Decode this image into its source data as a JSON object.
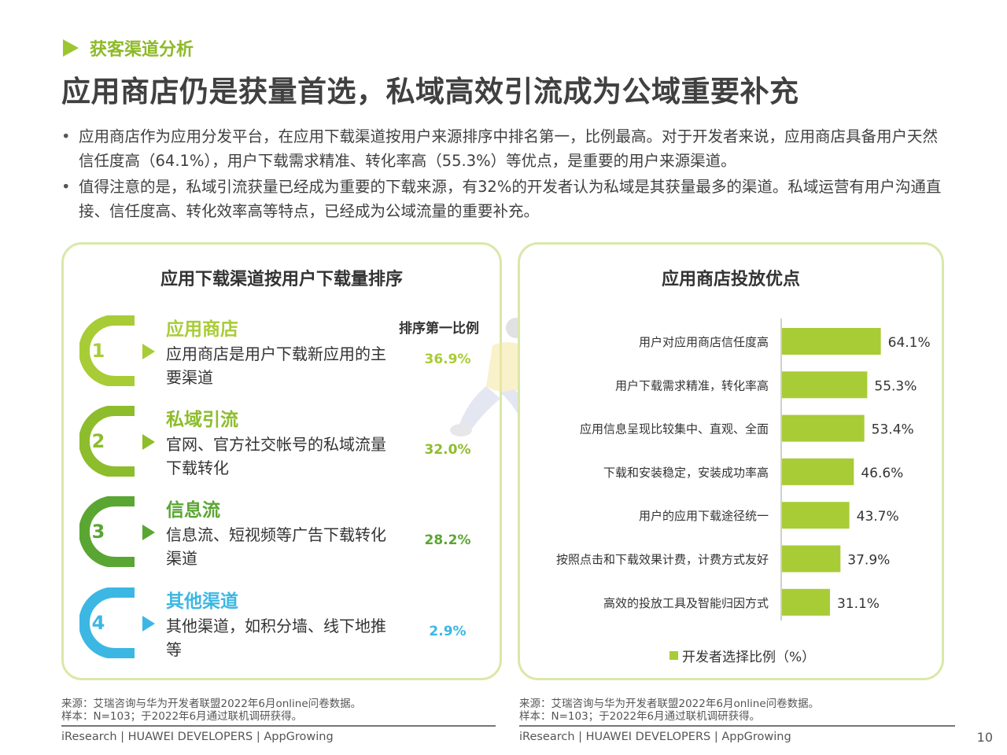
{
  "section_tag": "获客渠道分析",
  "title": "应用商店仍是获量首选，私域高效引流成为公域重要补充",
  "bullets": [
    "应用商店作为应用分发平台，在应用下载渠道按用户来源排序中排名第一，比例最高。对于开发者来说，应用商店具备用户天然信任度高（64.1%），用户下载需求精准、转化率高（55.3%）等优点，是重要的用户来源渠道。",
    "值得注意的是，私域引流获量已经成为重要的下载来源，有32%的开发者认为私域是其获量最多的渠道。私域运营有用户沟通直接、信任度高、转化效率高等特点，已经成为公域流量的重要补充。"
  ],
  "left_panel": {
    "title": "应用下载渠道按用户下载量排序",
    "column_header": "排序第一比例",
    "items": [
      {
        "num": "1",
        "name": "应用商店",
        "desc": "应用商店是用户下载新应用的主要渠道",
        "pct": "36.9%",
        "value": 36.9,
        "color": "#a8cc36"
      },
      {
        "num": "2",
        "name": "私域引流",
        "desc": "官网、官方社交帐号的私域流量下载转化",
        "pct": "32.0%",
        "value": 32.0,
        "color": "#8dbd2c"
      },
      {
        "num": "3",
        "name": "信息流",
        "desc": "信息流、短视频等广告下载转化渠道",
        "pct": "28.2%",
        "value": 28.2,
        "color": "#5aa632"
      },
      {
        "num": "4",
        "name": "其他渠道",
        "desc": "其他渠道，如积分墙、线下地推等",
        "pct": "2.9%",
        "value": 2.9,
        "color": "#3cb7e4"
      }
    ]
  },
  "right_panel": {
    "title": "应用商店投放优点"
  },
  "chart_data": {
    "type": "bar",
    "orientation": "horizontal",
    "categories": [
      "用户对应用商店信任度高",
      "用户下载需求精准，转化率高",
      "应用信息呈现比较集中、直观、全面",
      "下载和安装稳定，安装成功率高",
      "用户的应用下载途径统一",
      "按照点击和下载效果计费，计费方式友好",
      "高效的投放工具及智能归因方式"
    ],
    "series": [
      {
        "name": "开发者选择比例（%）",
        "values": [
          64.1,
          55.3,
          53.4,
          46.6,
          43.7,
          37.9,
          31.1
        ]
      }
    ],
    "value_labels": [
      "64.1%",
      "55.3%",
      "53.4%",
      "46.6%",
      "43.7%",
      "37.9%",
      "31.1%"
    ],
    "xlim": [
      0,
      100
    ],
    "legend": "bottom",
    "grid": false,
    "color": "#a8cc36"
  },
  "sources": {
    "left": [
      "来源：艾瑞咨询与华为开发者联盟2022年6月online问卷数据。",
      "样本：N=103；于2022年6月通过联机调研获得。"
    ],
    "right": [
      "来源：艾瑞咨询与华为开发者联盟2022年6月online问卷数据。",
      "样本：N=103；于2022年6月通过联机调研获得。"
    ]
  },
  "footer": {
    "left": "iResearch | HUAWEI DEVELOPERS | AppGrowing",
    "right": "iResearch | HUAWEI DEVELOPERS | AppGrowing",
    "page_number": "10"
  }
}
